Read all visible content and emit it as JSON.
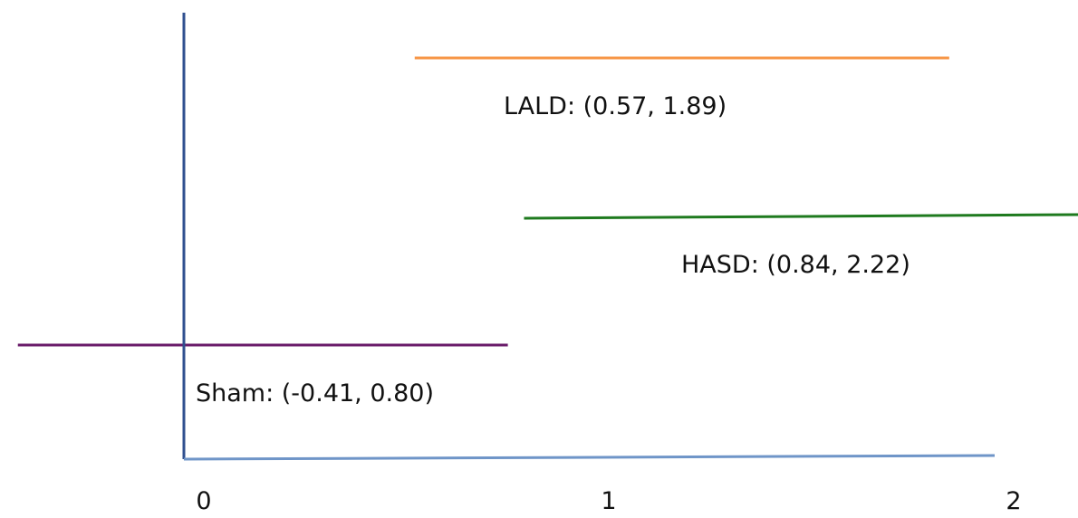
{
  "chart_data": {
    "type": "interval",
    "title": "",
    "xlabel": "",
    "ylabel": "",
    "xlim": [
      -0.45,
      2.35
    ],
    "x_ticks": [
      {
        "value": 0,
        "label": "0"
      },
      {
        "value": 1,
        "label": "1"
      },
      {
        "value": 2,
        "label": "2"
      }
    ],
    "grid": false,
    "legend": "none",
    "axis_color": "#2F4F8F",
    "baseline_color": "#6F95C8",
    "intervals": [
      {
        "name": "LALD",
        "lower": 0.57,
        "upper": 1.89,
        "label": "LALD: (0.57, 1.89)",
        "color": "#F79646"
      },
      {
        "name": "HASD",
        "lower": 0.84,
        "upper": 2.22,
        "label": "HASD: (0.84, 2.22)",
        "color": "#1E7A1E"
      },
      {
        "name": "Sham",
        "lower": -0.41,
        "upper": 0.8,
        "label": "Sham: (-0.41, 0.80)",
        "color": "#6A1B6A"
      }
    ]
  }
}
